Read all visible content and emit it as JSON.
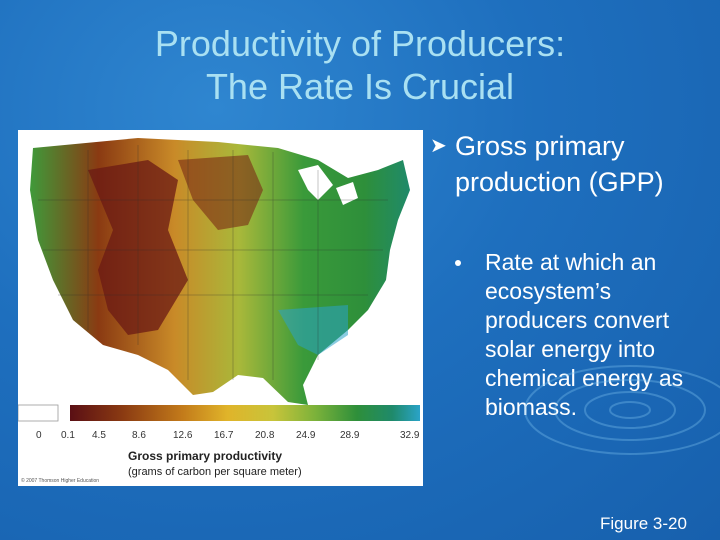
{
  "slide": {
    "title_line1": "Productivity of Producers:",
    "title_line2": "The Rate Is Crucial",
    "bullet_main": "Gross primary production (GPP)",
    "bullet_sub": "Rate at which an ecosystem’s producers convert solar energy into chemical energy as biomass.",
    "figure_caption": "Figure 3-20"
  },
  "map_figure": {
    "legend_ticks": [
      "0",
      "0.1",
      "4.5",
      "8.6",
      "12.6",
      "16.7",
      "20.8",
      "24.9",
      "28.9",
      "32.9"
    ],
    "legend_title": "Gross primary productivity",
    "legend_subtitle": "(grams of carbon per square meter)",
    "copyright": "© 2007 Thomson Higher Education",
    "scale_colors": [
      "#ffffff",
      "#5a0f14",
      "#8a3a12",
      "#c27a1a",
      "#e0b42a",
      "#c8c43a",
      "#7cb23a",
      "#2e8f3a",
      "#1f8a6a",
      "#2aa3c8"
    ]
  }
}
